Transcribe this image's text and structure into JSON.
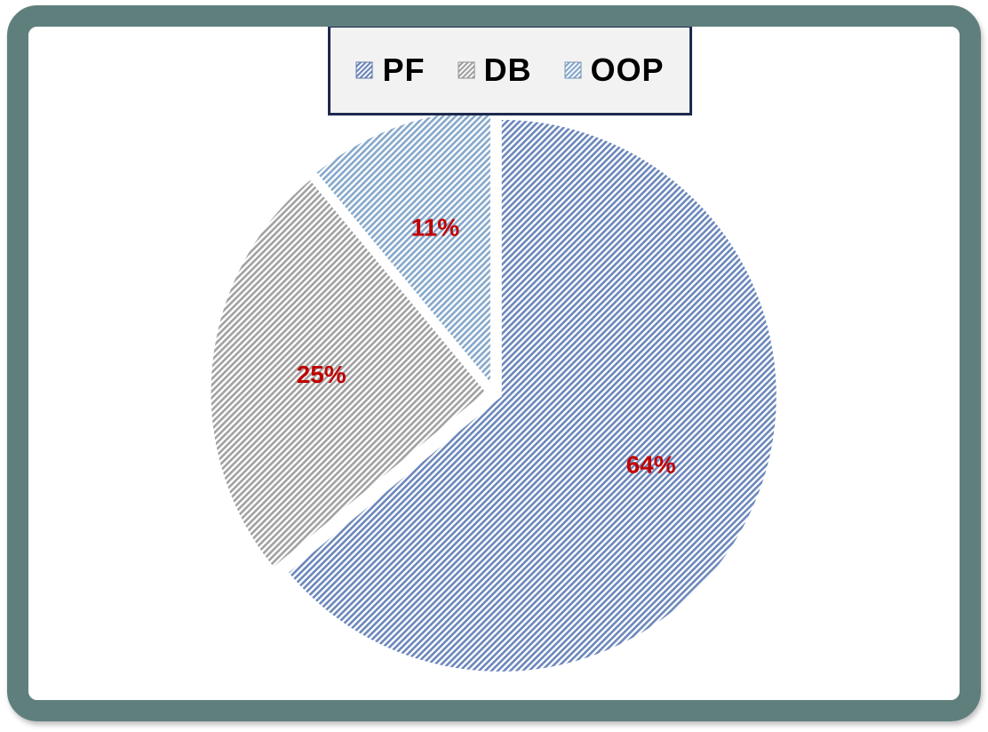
{
  "chart_data": {
    "type": "pie",
    "title": "",
    "legend_position": "top",
    "slices": [
      {
        "label": "PF",
        "value": 64,
        "display": "64%",
        "color": "#7e9fdc"
      },
      {
        "label": "DB",
        "value": 25,
        "display": "25%",
        "color": "#bdbdbd"
      },
      {
        "label": "OOP",
        "value": 11,
        "display": "11%",
        "color": "#9cc6ef"
      }
    ],
    "data_label_color": "#c00000"
  },
  "colors": {
    "frame": "#5f7f7d",
    "legend_border": "#1d2a4f",
    "legend_bg": "#f2f2f2"
  }
}
